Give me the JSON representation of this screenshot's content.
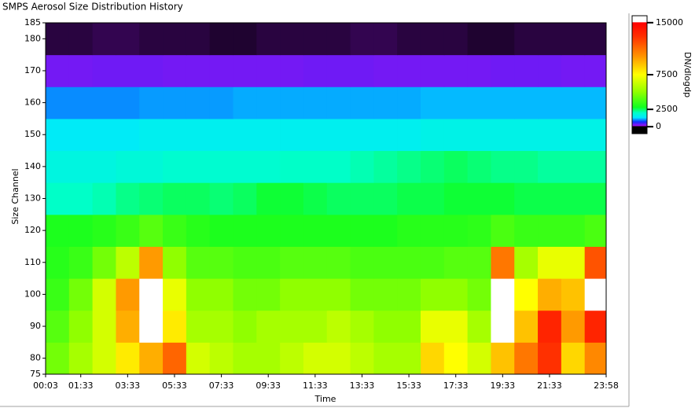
{
  "chart_data": {
    "type": "heatmap",
    "title": "SMPS Aerosol Size Distribution History",
    "xlabel": "Time",
    "ylabel": "Size Channel",
    "colorbar_label": "DN/dlogdp",
    "x_bins": [
      3,
      63,
      123,
      183,
      243,
      303,
      363,
      423,
      483,
      543,
      603,
      663,
      723,
      783,
      843,
      903,
      963,
      1023,
      1083,
      1143,
      1203,
      1263,
      1323,
      1383,
      1438
    ],
    "y_bins": [
      75,
      85,
      95,
      105,
      115,
      125,
      135,
      145,
      155,
      165,
      175,
      185
    ],
    "z": [
      [
        4500,
        5500,
        6500,
        8000,
        9500,
        11500,
        6500,
        6000,
        5500,
        5500,
        6000,
        6500,
        6500,
        6000,
        5500,
        5500,
        8500,
        7500,
        6500,
        9000,
        11000,
        13000,
        8500,
        10500
      ],
      [
        4000,
        5000,
        6500,
        9500,
        15200,
        8000,
        5500,
        5500,
        5000,
        5500,
        5500,
        5500,
        6000,
        5500,
        5000,
        5000,
        7000,
        7000,
        5500,
        15200,
        9000,
        13500,
        10000,
        13500
      ],
      [
        3500,
        4500,
        6500,
        10000,
        15200,
        7000,
        5000,
        5000,
        4500,
        4500,
        5000,
        5000,
        5000,
        4500,
        4500,
        4500,
        5000,
        5000,
        4500,
        15200,
        7500,
        9500,
        9000,
        15200
      ],
      [
        3200,
        3500,
        4500,
        6000,
        10000,
        5000,
        4000,
        4000,
        3800,
        3800,
        4000,
        4000,
        4000,
        3800,
        3800,
        3800,
        3800,
        4000,
        4000,
        11000,
        5500,
        7000,
        7000,
        12000
      ],
      [
        3000,
        3000,
        3200,
        3500,
        4000,
        3500,
        3200,
        3000,
        3000,
        3000,
        3000,
        3000,
        3000,
        3000,
        3000,
        3200,
        3200,
        3200,
        3300,
        3800,
        3500,
        3500,
        3500,
        3800
      ],
      [
        2000,
        2000,
        2100,
        2300,
        2400,
        2500,
        2500,
        2400,
        2500,
        2700,
        2700,
        2600,
        2500,
        2500,
        2500,
        2600,
        2600,
        2700,
        2700,
        2700,
        2600,
        2600,
        2600,
        2600
      ],
      [
        1700,
        1700,
        1700,
        1800,
        1800,
        1900,
        1900,
        1900,
        1900,
        1900,
        2000,
        2000,
        2000,
        2100,
        2200,
        2300,
        2400,
        2500,
        2400,
        2300,
        2300,
        2200,
        2200,
        2200
      ],
      [
        1400,
        1400,
        1400,
        1400,
        1500,
        1500,
        1500,
        1500,
        1500,
        1500,
        1500,
        1500,
        1500,
        1500,
        1500,
        1500,
        1600,
        1600,
        1600,
        1600,
        1600,
        1600,
        1600,
        1600
      ],
      [
        1000,
        1000,
        1000,
        1000,
        1050,
        1050,
        1050,
        1050,
        1100,
        1100,
        1100,
        1100,
        1100,
        1100,
        1100,
        1100,
        1150,
        1150,
        1150,
        1150,
        1150,
        1150,
        1150,
        1150
      ],
      [
        300,
        300,
        320,
        320,
        320,
        300,
        300,
        300,
        300,
        300,
        300,
        320,
        320,
        320,
        300,
        300,
        300,
        300,
        300,
        320,
        320,
        320,
        300,
        300
      ],
      [
        40,
        40,
        50,
        50,
        40,
        40,
        40,
        30,
        30,
        40,
        40,
        40,
        40,
        50,
        50,
        40,
        40,
        40,
        30,
        30,
        40,
        40,
        40,
        40
      ]
    ],
    "xlim": [
      3,
      1438
    ],
    "ylim": [
      75,
      185
    ],
    "xticks": [
      {
        "value": 3,
        "label": "00:03"
      },
      {
        "value": 93,
        "label": "01:33"
      },
      {
        "value": 213,
        "label": "03:33"
      },
      {
        "value": 333,
        "label": "05:33"
      },
      {
        "value": 453,
        "label": "07:33"
      },
      {
        "value": 573,
        "label": "09:33"
      },
      {
        "value": 693,
        "label": "11:33"
      },
      {
        "value": 813,
        "label": "13:33"
      },
      {
        "value": 933,
        "label": "15:33"
      },
      {
        "value": 1053,
        "label": "17:33"
      },
      {
        "value": 1173,
        "label": "19:33"
      },
      {
        "value": 1293,
        "label": "21:33"
      },
      {
        "value": 1438,
        "label": "23:58"
      }
    ],
    "yticks": [
      75,
      80,
      90,
      100,
      110,
      120,
      130,
      140,
      150,
      160,
      170,
      180,
      185
    ],
    "zlim": [
      -1000,
      16000
    ],
    "zticks": [
      0,
      2500,
      7500,
      15000
    ],
    "colorscale": [
      {
        "value": 0,
        "color": "#000000"
      },
      {
        "value": 150,
        "color": "#9a10f0"
      },
      {
        "value": 700,
        "color": "#1030ff"
      },
      {
        "value": 1300,
        "color": "#00e8ff"
      },
      {
        "value": 2000,
        "color": "#00ffc8"
      },
      {
        "value": 2800,
        "color": "#10ff20"
      },
      {
        "value": 5000,
        "color": "#90ff00"
      },
      {
        "value": 7500,
        "color": "#ffff00"
      },
      {
        "value": 10000,
        "color": "#ff9a00"
      },
      {
        "value": 13000,
        "color": "#ff3000"
      },
      {
        "value": 15000,
        "color": "#ff0000"
      },
      {
        "value": 15100,
        "color": "#ffffff"
      }
    ]
  }
}
